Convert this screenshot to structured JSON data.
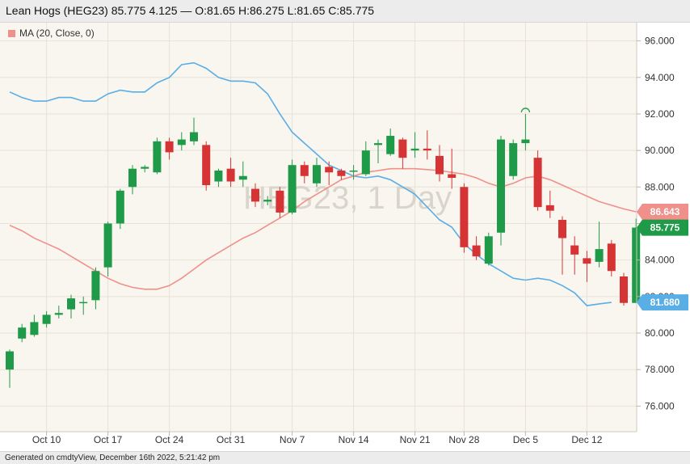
{
  "header": {
    "title": "Lean Hogs (HEG23) 85.775 4.125 — O:81.65 H:86.275 L:81.65 C:85.775"
  },
  "legend": {
    "label": "MA (20, Close, 0)"
  },
  "footer": {
    "text": "Generated on cmdtyView, December 16th 2022, 5:21:42 pm"
  },
  "colors": {
    "background": "#f9f6ef",
    "up": "#1f9a48",
    "down": "#d63434",
    "ma": "#f0908a",
    "band": "#5aaee6",
    "grid": "#e7e2d8"
  },
  "chart_data": {
    "type": "candlestick",
    "watermark": "HEG23, 1 Day",
    "ylim": [
      74.6,
      97.0
    ],
    "yticks": [
      "96.000",
      "94.000",
      "92.000",
      "90.000",
      "88.000",
      "86.000",
      "84.000",
      "82.000",
      "80.000",
      "78.000",
      "76.000"
    ],
    "xticks": [
      "Oct 10",
      "Oct 17",
      "Oct 24",
      "Oct 31",
      "Nov 7",
      "Nov 14",
      "Nov 21",
      "Nov 28",
      "Dec 5",
      "Dec 12"
    ],
    "price_labels": [
      {
        "label": "86.643",
        "value": 86.643,
        "series": "ma"
      },
      {
        "label": "85.775",
        "value": 85.775,
        "series": "last"
      },
      {
        "label": "81.680",
        "value": 81.68,
        "series": "band"
      }
    ],
    "candles": [
      {
        "o": 78.0,
        "h": 79.1,
        "l": 77.0,
        "c": 79.0
      },
      {
        "o": 79.7,
        "h": 80.5,
        "l": 79.5,
        "c": 80.3
      },
      {
        "o": 79.9,
        "h": 81.0,
        "l": 79.8,
        "c": 80.6
      },
      {
        "o": 80.5,
        "h": 81.2,
        "l": 80.3,
        "c": 81.0
      },
      {
        "o": 81.0,
        "h": 81.5,
        "l": 80.8,
        "c": 81.1
      },
      {
        "o": 81.3,
        "h": 82.1,
        "l": 80.8,
        "c": 81.9
      },
      {
        "o": 81.7,
        "h": 82.0,
        "l": 81.0,
        "c": 81.7
      },
      {
        "o": 81.8,
        "h": 83.6,
        "l": 81.3,
        "c": 83.4
      },
      {
        "o": 83.6,
        "h": 86.1,
        "l": 83.1,
        "c": 86.0
      },
      {
        "o": 86.0,
        "h": 87.9,
        "l": 85.7,
        "c": 87.8
      },
      {
        "o": 88.0,
        "h": 89.2,
        "l": 87.6,
        "c": 89.0
      },
      {
        "o": 89.0,
        "h": 89.2,
        "l": 88.8,
        "c": 89.1
      },
      {
        "o": 88.8,
        "h": 90.7,
        "l": 88.7,
        "c": 90.5
      },
      {
        "o": 90.5,
        "h": 90.7,
        "l": 89.5,
        "c": 89.9
      },
      {
        "o": 90.3,
        "h": 91.0,
        "l": 90.0,
        "c": 90.6
      },
      {
        "o": 90.5,
        "h": 91.8,
        "l": 90.3,
        "c": 91.0
      },
      {
        "o": 90.3,
        "h": 90.5,
        "l": 87.8,
        "c": 88.1
      },
      {
        "o": 88.3,
        "h": 89.0,
        "l": 88.0,
        "c": 88.9
      },
      {
        "o": 89.0,
        "h": 89.6,
        "l": 88.0,
        "c": 88.3
      },
      {
        "o": 88.4,
        "h": 89.4,
        "l": 88.0,
        "c": 88.6
      },
      {
        "o": 87.9,
        "h": 88.2,
        "l": 86.9,
        "c": 87.2
      },
      {
        "o": 87.2,
        "h": 87.5,
        "l": 87.0,
        "c": 87.3
      },
      {
        "o": 87.8,
        "h": 88.0,
        "l": 86.3,
        "c": 86.6
      },
      {
        "o": 86.6,
        "h": 89.5,
        "l": 86.5,
        "c": 89.2
      },
      {
        "o": 89.2,
        "h": 89.4,
        "l": 88.2,
        "c": 88.6
      },
      {
        "o": 88.2,
        "h": 89.6,
        "l": 88.0,
        "c": 89.2
      },
      {
        "o": 89.1,
        "h": 89.4,
        "l": 88.1,
        "c": 88.8
      },
      {
        "o": 88.9,
        "h": 89.0,
        "l": 88.4,
        "c": 88.6
      },
      {
        "o": 88.9,
        "h": 89.2,
        "l": 88.4,
        "c": 88.9
      },
      {
        "o": 88.7,
        "h": 90.5,
        "l": 88.6,
        "c": 90.0
      },
      {
        "o": 90.3,
        "h": 90.6,
        "l": 89.3,
        "c": 90.4
      },
      {
        "o": 89.8,
        "h": 91.2,
        "l": 89.7,
        "c": 90.8
      },
      {
        "o": 90.6,
        "h": 90.7,
        "l": 89.0,
        "c": 89.6
      },
      {
        "o": 90.0,
        "h": 91.0,
        "l": 89.6,
        "c": 90.1
      },
      {
        "o": 90.1,
        "h": 91.1,
        "l": 89.5,
        "c": 90.0
      },
      {
        "o": 89.7,
        "h": 90.3,
        "l": 88.3,
        "c": 88.7
      },
      {
        "o": 88.7,
        "h": 90.1,
        "l": 87.9,
        "c": 88.5
      },
      {
        "o": 88.0,
        "h": 88.2,
        "l": 84.4,
        "c": 84.7
      },
      {
        "o": 84.8,
        "h": 85.3,
        "l": 84.0,
        "c": 84.2
      },
      {
        "o": 83.8,
        "h": 85.5,
        "l": 83.7,
        "c": 85.3
      },
      {
        "o": 85.5,
        "h": 90.8,
        "l": 84.8,
        "c": 90.6
      },
      {
        "o": 88.6,
        "h": 90.6,
        "l": 88.4,
        "c": 90.4
      },
      {
        "o": 90.4,
        "h": 92.0,
        "l": 90.0,
        "c": 90.6
      },
      {
        "o": 89.6,
        "h": 90.0,
        "l": 86.7,
        "c": 86.9
      },
      {
        "o": 87.0,
        "h": 87.8,
        "l": 86.3,
        "c": 86.7
      },
      {
        "o": 86.2,
        "h": 86.4,
        "l": 83.2,
        "c": 85.2
      },
      {
        "o": 84.8,
        "h": 85.3,
        "l": 83.2,
        "c": 84.3
      },
      {
        "o": 84.1,
        "h": 84.5,
        "l": 82.8,
        "c": 83.8
      },
      {
        "o": 83.9,
        "h": 86.1,
        "l": 83.6,
        "c": 84.6
      },
      {
        "o": 84.9,
        "h": 85.1,
        "l": 83.1,
        "c": 83.4
      },
      {
        "o": 83.1,
        "h": 83.3,
        "l": 81.5,
        "c": 81.65
      },
      {
        "o": 81.65,
        "h": 86.275,
        "l": 81.65,
        "c": 85.775
      }
    ],
    "ma_series": {
      "name": "MA (20, Close, 0)",
      "values": [
        85.9,
        85.6,
        85.2,
        84.9,
        84.6,
        84.2,
        83.8,
        83.4,
        83.0,
        82.7,
        82.5,
        82.4,
        82.4,
        82.6,
        83.0,
        83.5,
        84.0,
        84.4,
        84.8,
        85.2,
        85.5,
        85.9,
        86.3,
        86.7,
        87.2,
        87.6,
        88.0,
        88.4,
        88.6,
        88.8,
        88.9,
        89.0,
        89.0,
        89.0,
        88.95,
        88.9,
        88.8,
        88.7,
        88.5,
        88.2,
        88.0,
        88.2,
        88.5,
        88.6,
        88.4,
        88.1,
        87.8,
        87.5,
        87.2,
        87.0,
        86.8,
        86.643
      ]
    },
    "band_series": {
      "values": [
        93.2,
        92.9,
        92.7,
        92.7,
        92.9,
        92.9,
        92.7,
        92.7,
        93.1,
        93.3,
        93.2,
        93.2,
        93.7,
        94.0,
        94.7,
        94.8,
        94.5,
        94.0,
        93.8,
        93.8,
        93.7,
        93.1,
        92.0,
        91.0,
        90.4,
        89.8,
        89.2,
        88.9,
        88.6,
        88.5,
        88.6,
        88.4,
        88.0,
        87.6,
        86.9,
        86.2,
        85.8,
        84.9,
        84.3,
        83.8,
        83.4,
        83.0,
        82.9,
        83.0,
        82.9,
        82.6,
        82.2,
        81.5,
        81.6,
        81.68
      ]
    }
  }
}
